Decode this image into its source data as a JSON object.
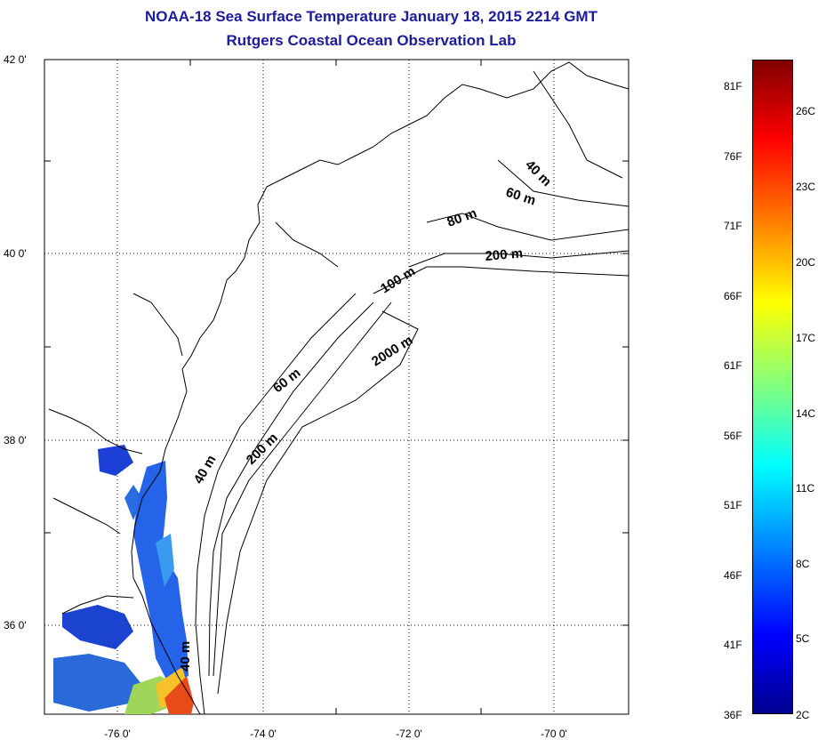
{
  "title": {
    "line1": "NOAA-18 Sea Surface Temperature January 18, 2015 2214 GMT",
    "line2": "Rutgers Coastal Ocean Observation Lab"
  },
  "axes": {
    "lat_labels": [
      {
        "value": 42,
        "text": "42 0'"
      },
      {
        "value": 40,
        "text": "40 0'"
      },
      {
        "value": 38,
        "text": "38 0'"
      },
      {
        "value": 36,
        "text": "36 0'"
      }
    ],
    "lon_labels": [
      {
        "value": -76,
        "text": "-76 0'"
      },
      {
        "value": -74,
        "text": "-74 0'"
      },
      {
        "value": -72,
        "text": "-72 0'"
      },
      {
        "value": -70,
        "text": "-70 0'"
      }
    ],
    "lat_range": [
      35.0,
      42.0
    ],
    "lon_range": [
      -77.0,
      -69.0
    ],
    "grid": true
  },
  "contours": [
    {
      "text": "40 m"
    },
    {
      "text": "60 m"
    },
    {
      "text": "80 m"
    },
    {
      "text": "200 m"
    },
    {
      "text": "100 m"
    },
    {
      "text": "2000 m"
    },
    {
      "text": "60 m"
    },
    {
      "text": "200 m"
    },
    {
      "text": "40 m"
    },
    {
      "text": "40 m"
    }
  ],
  "colorbar": {
    "fahrenheit": [
      "81F",
      "76F",
      "71F",
      "66F",
      "61F",
      "56F",
      "51F",
      "46F",
      "41F",
      "36F"
    ],
    "celsius": [
      "26C",
      "23C",
      "20C",
      "17C",
      "14C",
      "11C",
      "8C",
      "5C",
      "2C"
    ],
    "colormap": "jet"
  }
}
